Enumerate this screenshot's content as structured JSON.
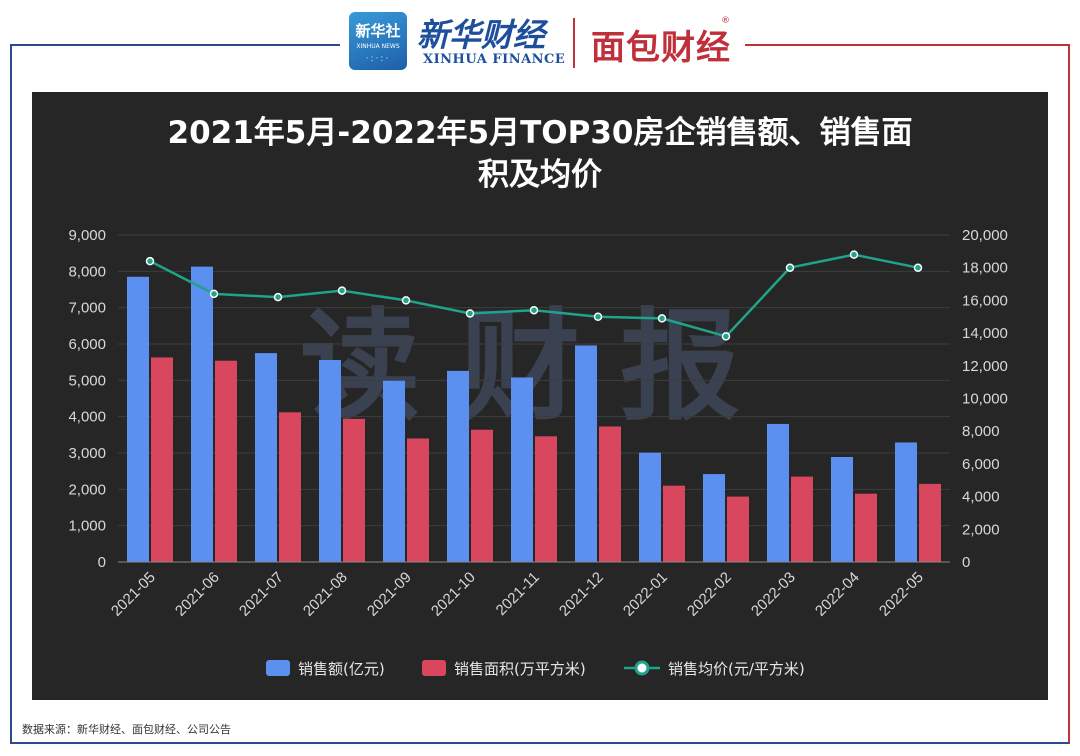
{
  "header": {
    "xinhua_logo_cn": "新华社",
    "xinhua_logo_en": "XINHUA NEWS",
    "xinhua_finance_cn": "新华财经",
    "xinhua_finance_en": "XINHUA FINANCE",
    "mianbao_cn": "面包财经",
    "mianbao_reg": "®"
  },
  "watermark": "读财报",
  "footer": {
    "source": "数据来源：新华财经、面包财经、公司公告"
  },
  "colors": {
    "sales": "#5b8ff0",
    "area": "#d9475e",
    "price": "#1fa38a",
    "panel": "#262626"
  },
  "chart_data": {
    "type": "bar",
    "title": "2021年5月-2022年5月TOP30房企销售额、销售面积及均价",
    "title_line1": "2021年5月-2022年5月TOP30房企销售额、销售面",
    "title_line2": "积及均价",
    "categories": [
      "2021-05",
      "2021-06",
      "2021-07",
      "2021-08",
      "2021-09",
      "2021-10",
      "2021-11",
      "2021-12",
      "2022-01",
      "2022-02",
      "2022-03",
      "2022-04",
      "2022-05"
    ],
    "series": [
      {
        "name": "销售额(亿元)",
        "type": "bar",
        "axis": "left",
        "values": [
          7850,
          8130,
          5750,
          5560,
          4990,
          5260,
          5080,
          5960,
          3010,
          2420,
          3800,
          2890,
          3290
        ]
      },
      {
        "name": "销售面积(万平方米)",
        "type": "bar",
        "axis": "left",
        "values": [
          5630,
          5540,
          4120,
          3940,
          3400,
          3640,
          3460,
          3730,
          2100,
          1800,
          2350,
          1880,
          2150
        ]
      },
      {
        "name": "销售均价(元/平方米)",
        "type": "line",
        "axis": "right",
        "values": [
          18400,
          16400,
          16200,
          16600,
          16000,
          15200,
          15400,
          15000,
          14900,
          13800,
          18000,
          18800,
          18000
        ]
      }
    ],
    "left_axis": {
      "min": 0,
      "max": 9000,
      "step": 1000,
      "tick_labels": [
        "0",
        "1,000",
        "2,000",
        "3,000",
        "4,000",
        "5,000",
        "6,000",
        "7,000",
        "8,000",
        "9,000"
      ]
    },
    "right_axis": {
      "min": 0,
      "max": 20000,
      "step": 2000,
      "tick_labels": [
        "0",
        "2,000",
        "4,000",
        "6,000",
        "8,000",
        "10,000",
        "12,000",
        "14,000",
        "16,000",
        "18,000",
        "20,000"
      ]
    },
    "legend_position": "bottom-center"
  }
}
